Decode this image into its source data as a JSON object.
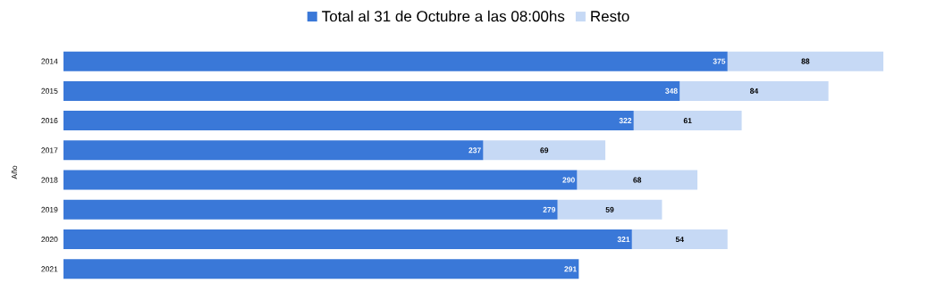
{
  "chart_data": {
    "type": "bar",
    "orientation": "horizontal",
    "stacked": true,
    "ylabel": "Año",
    "legend": "top",
    "data_labels": true,
    "categories": [
      "2014",
      "2015",
      "2016",
      "2017",
      "2018",
      "2019",
      "2020",
      "2021"
    ],
    "series": [
      {
        "name": "Total al 31 de Octubre a las 08:00hs",
        "color": "#3a78d8",
        "values": [
          375,
          348,
          322,
          237,
          290,
          279,
          321,
          291
        ]
      },
      {
        "name": "Resto",
        "color": "#c6d9f5",
        "values": [
          88,
          84,
          61,
          69,
          68,
          59,
          54,
          null
        ]
      }
    ]
  }
}
